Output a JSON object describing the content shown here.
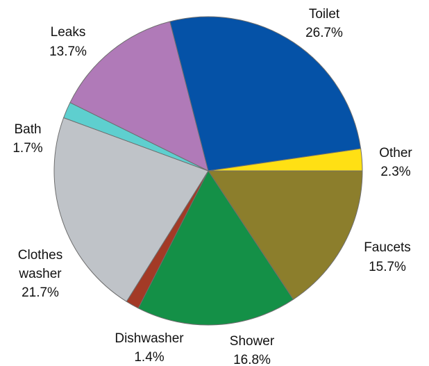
{
  "chart_data": {
    "type": "pie",
    "title": "",
    "start_angle_deg": 0,
    "direction": "clockwise",
    "slices": [
      {
        "name": "Faucets",
        "value": 15.7,
        "value_label": "15.7%",
        "color": "#8c7e2c"
      },
      {
        "name": "Shower",
        "value": 16.8,
        "value_label": "16.8%",
        "color": "#149047"
      },
      {
        "name": "Dishwasher",
        "value": 1.4,
        "value_label": "1.4%",
        "color": "#a33a26"
      },
      {
        "name": "Clothes washer",
        "value": 21.7,
        "value_label": "21.7%",
        "color": "#bfc3c8"
      },
      {
        "name": "Bath",
        "value": 1.7,
        "value_label": "1.7%",
        "color": "#5ecfcf"
      },
      {
        "name": "Leaks",
        "value": 13.7,
        "value_label": "13.7%",
        "color": "#b07ab8"
      },
      {
        "name": "Toilet",
        "value": 26.7,
        "value_label": "26.7%",
        "color": "#0552a7"
      },
      {
        "name": "Other",
        "value": 2.3,
        "value_label": "2.3%",
        "color": "#ffe014"
      }
    ]
  }
}
